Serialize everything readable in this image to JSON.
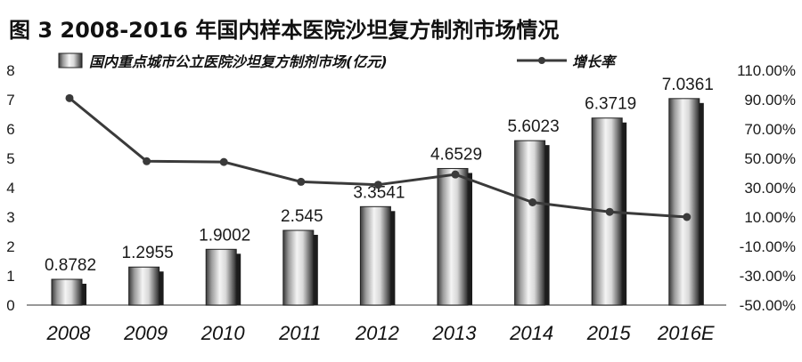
{
  "chart_data": {
    "type": "bar",
    "title": "图 3    2008-2016 年国内样本医院沙坦复方制剂市场情况",
    "categories": [
      "2008",
      "2009",
      "2010",
      "2011",
      "2012",
      "2013",
      "2014",
      "2015",
      "2016E"
    ],
    "series": [
      {
        "name": "国内重点城市公立医院沙坦复方制剂市场(亿元)",
        "type": "bar",
        "axis": "left",
        "values": [
          0.8782,
          1.2955,
          1.9002,
          2.545,
          3.3541,
          4.6529,
          5.6023,
          6.3719,
          7.0361
        ],
        "labels": [
          "0.8782",
          "1.2955",
          "1.9002",
          "2.545",
          "3.3541",
          "4.6529",
          "5.6023",
          "6.3719",
          "7.0361"
        ]
      },
      {
        "name": "增长率",
        "type": "line",
        "axis": "right",
        "values": [
          91,
          48,
          47.5,
          34,
          32,
          39,
          20,
          13.5,
          10
        ]
      }
    ],
    "ylim_left": [
      0,
      8
    ],
    "yticks_left": [
      "0",
      "1",
      "2",
      "3",
      "4",
      "5",
      "6",
      "7",
      "8"
    ],
    "ylim_right": [
      -50,
      110
    ],
    "yticks_right": [
      "-50.00%",
      "-30.00%",
      "-10.00%",
      "10.00%",
      "30.00%",
      "50.00%",
      "70.00%",
      "90.00%",
      "110.00%"
    ],
    "grid": false,
    "legend_position": "top"
  },
  "colors": {
    "line": "#3a3a3a",
    "text": "#111111",
    "bar_dark": "#2a2a2a",
    "bar_light": "#f4f4f4"
  }
}
